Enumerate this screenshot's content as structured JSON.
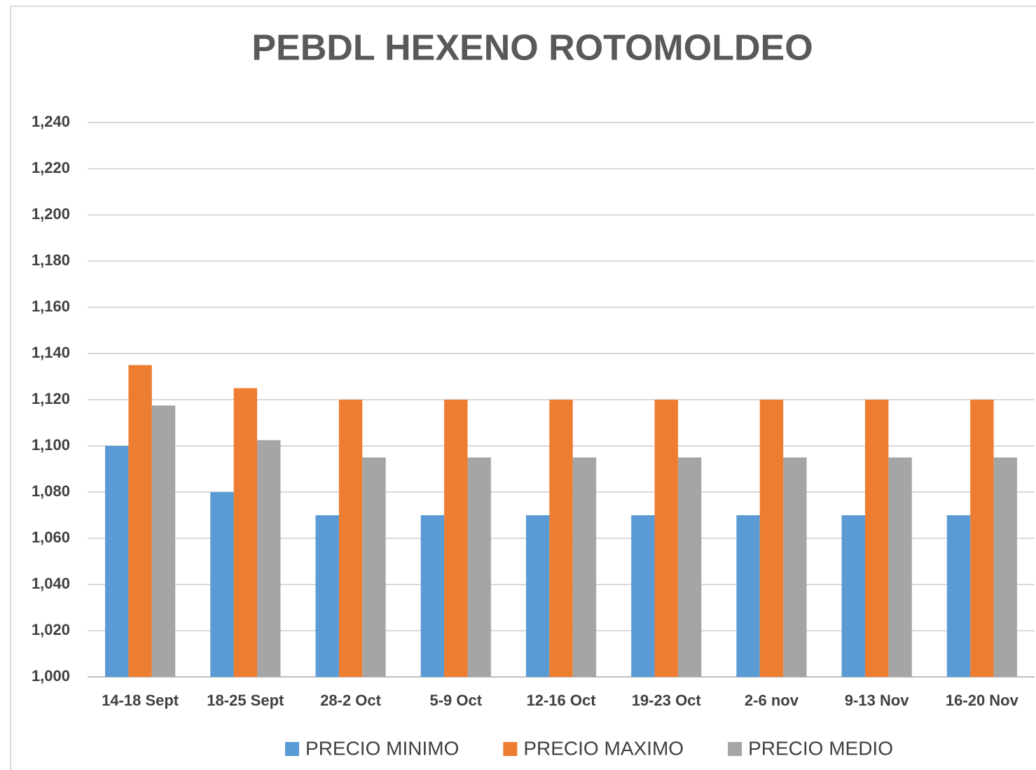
{
  "chart_data": {
    "type": "bar",
    "title": "PEBDL HEXENO ROTOMOLDEO",
    "categories": [
      "14-18 Sept",
      "18-25 Sept",
      "28-2 Oct",
      "5-9 Oct",
      "12-16 Oct",
      "19-23 Oct",
      "2-6 nov",
      "9-13 Nov",
      "16-20 Nov"
    ],
    "series": [
      {
        "name": "PRECIO MINIMO",
        "color": "#5b9bd5",
        "values": [
          1100,
          1080,
          1070,
          1070,
          1070,
          1070,
          1070,
          1070,
          1070
        ]
      },
      {
        "name": "PRECIO MAXIMO",
        "color": "#ed7d31",
        "values": [
          1135,
          1125,
          1120,
          1120,
          1120,
          1120,
          1120,
          1120,
          1120
        ]
      },
      {
        "name": "PRECIO MEDIO",
        "color": "#a5a5a5",
        "values": [
          1117.5,
          1102.5,
          1095,
          1095,
          1095,
          1095,
          1095,
          1095,
          1095
        ]
      }
    ],
    "ylim": [
      1000,
      1240
    ],
    "yticks": [
      {
        "value": 1000,
        "label": "1,000"
      },
      {
        "value": 1020,
        "label": "1,020"
      },
      {
        "value": 1040,
        "label": "1,040"
      },
      {
        "value": 1060,
        "label": "1,060"
      },
      {
        "value": 1080,
        "label": "1,080"
      },
      {
        "value": 1100,
        "label": "1,100"
      },
      {
        "value": 1120,
        "label": "1,120"
      },
      {
        "value": 1140,
        "label": "1,140"
      },
      {
        "value": 1160,
        "label": "1,160"
      },
      {
        "value": 1180,
        "label": "1,180"
      },
      {
        "value": 1200,
        "label": "1,200"
      },
      {
        "value": 1220,
        "label": "1,220"
      },
      {
        "value": 1240,
        "label": "1,240"
      }
    ],
    "grid": true,
    "legend": "bottom"
  }
}
